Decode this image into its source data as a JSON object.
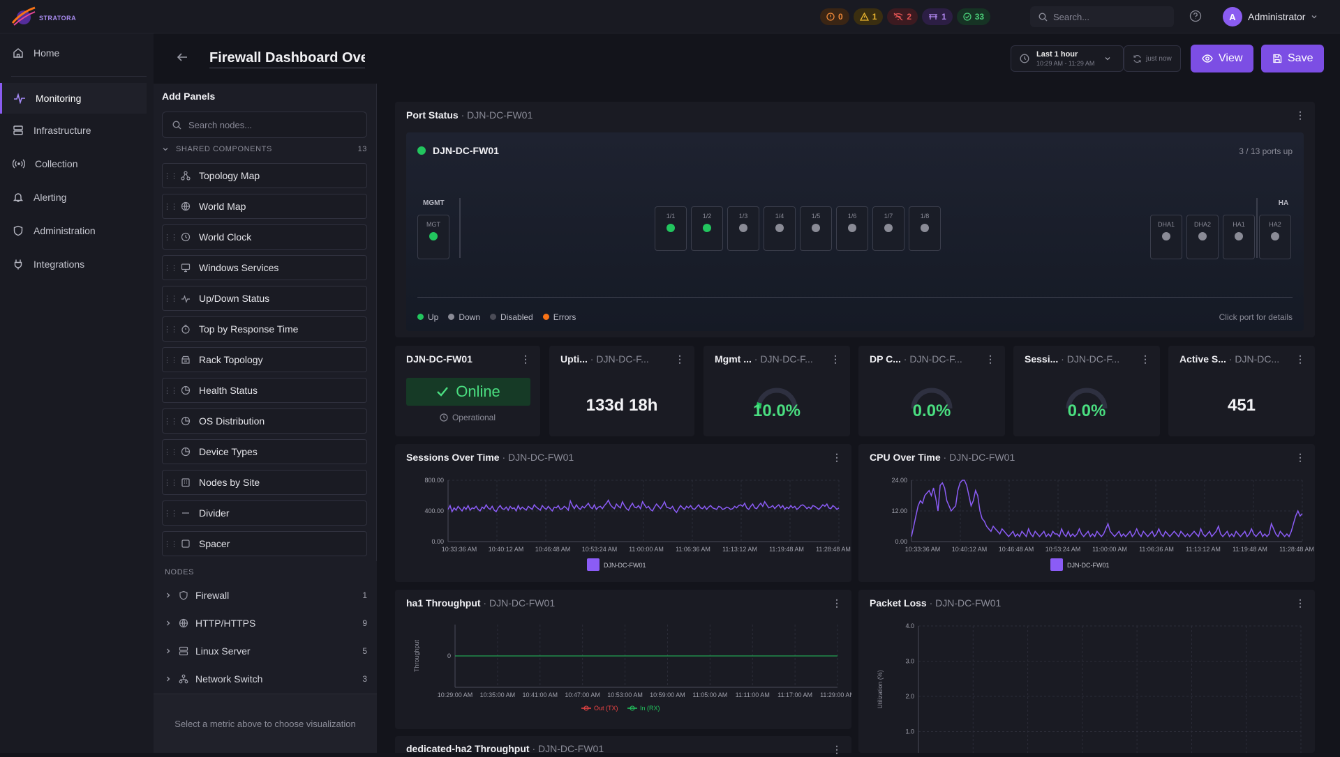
{
  "app": {
    "logo_text": "STRATORA"
  },
  "topbar": {
    "alerts": [
      {
        "count": "0",
        "icon": "error-circle-icon",
        "color": "#f08a3a"
      },
      {
        "count": "1",
        "icon": "warning-triangle-icon",
        "color": "#eab52f"
      },
      {
        "count": "2",
        "icon": "down-icon",
        "color": "#e85656"
      },
      {
        "count": "1",
        "icon": "maintenance-icon",
        "color": "#b58af5"
      },
      {
        "count": "33",
        "icon": "check-circle-icon",
        "color": "#4bd07a"
      }
    ],
    "search_placeholder": "Search...",
    "user": {
      "initial": "A",
      "name": "Administrator"
    }
  },
  "nav": {
    "home": "Home",
    "monitoring": "Monitoring",
    "infrastructure": "Infrastructure",
    "collection": "Collection",
    "alerting": "Alerting",
    "administration": "Administration",
    "integrations": "Integrations"
  },
  "header": {
    "title": "Firewall Dashboard Overview",
    "time_range": "Last 1 hour",
    "time_sub": "10:29 AM - 11:29 AM",
    "refresh": "just now",
    "view_label": "View",
    "save_label": "Save"
  },
  "panelbar": {
    "title": "Add Panels",
    "search_placeholder": "Search nodes...",
    "shared_label": "SHARED COMPONENTS",
    "shared_count": "13",
    "components": [
      {
        "label": "Topology Map",
        "icon": "topology-icon"
      },
      {
        "label": "World Map",
        "icon": "globe-icon"
      },
      {
        "label": "World Clock",
        "icon": "clock-icon"
      },
      {
        "label": "Windows Services",
        "icon": "monitor-icon"
      },
      {
        "label": "Up/Down Status",
        "icon": "pulse-icon"
      },
      {
        "label": "Top by Response Time",
        "icon": "timer-icon"
      },
      {
        "label": "Rack Topology",
        "icon": "rack-icon"
      },
      {
        "label": "Health Status",
        "icon": "pie-icon"
      },
      {
        "label": "OS Distribution",
        "icon": "pie-icon"
      },
      {
        "label": "Device Types",
        "icon": "pie-icon"
      },
      {
        "label": "Nodes by Site",
        "icon": "building-icon"
      },
      {
        "label": "Divider",
        "icon": "divider-icon"
      },
      {
        "label": "Spacer",
        "icon": "square-icon"
      }
    ],
    "nodes_label": "NODES",
    "nodes": [
      {
        "label": "Firewall",
        "count": "1",
        "icon": "shield-icon"
      },
      {
        "label": "HTTP/HTTPS",
        "count": "9",
        "icon": "globe-icon"
      },
      {
        "label": "Linux Server",
        "count": "5",
        "icon": "server-icon"
      },
      {
        "label": "Network Switch",
        "count": "3",
        "icon": "switch-icon"
      }
    ],
    "footer": "Select a metric above to choose visualization"
  },
  "port_status": {
    "title": "Port Status",
    "source": "DJN-DC-FW01",
    "device": "DJN-DC-FW01",
    "summary": "3 / 13 ports up",
    "mgmt_group": "MGMT",
    "ha_group": "HA",
    "mgmt_ports": [
      {
        "label": "MGT",
        "status": "up"
      }
    ],
    "data_ports": [
      {
        "label": "1/1",
        "status": "up"
      },
      {
        "label": "1/2",
        "status": "up"
      },
      {
        "label": "1/3",
        "status": "down"
      },
      {
        "label": "1/4",
        "status": "down"
      },
      {
        "label": "1/5",
        "status": "down"
      },
      {
        "label": "1/6",
        "status": "down"
      },
      {
        "label": "1/7",
        "status": "down"
      },
      {
        "label": "1/8",
        "status": "down"
      }
    ],
    "ha_ports": [
      {
        "label": "DHA1",
        "status": "down"
      },
      {
        "label": "DHA2",
        "status": "down"
      },
      {
        "label": "HA1",
        "status": "down"
      },
      {
        "label": "HA2",
        "status": "down"
      }
    ],
    "legend": [
      {
        "label": "Up",
        "color": "#22c55e"
      },
      {
        "label": "Down",
        "color": "#8a8b96"
      },
      {
        "label": "Disabled",
        "color": "#4b4c57"
      },
      {
        "label": "Errors",
        "color": "#f97316"
      }
    ],
    "hint": "Click port for details"
  },
  "stats": {
    "status": {
      "title": "DJN-DC-FW01",
      "value": "Online",
      "sub": "Operational"
    },
    "uptime": {
      "title": "Upti...",
      "source": "DJN-DC-F...",
      "value": "133d 18h"
    },
    "mgmt": {
      "title": "Mgmt ...",
      "source": "DJN-DC-F...",
      "value": "10.0%",
      "fraction": 0.1
    },
    "dp": {
      "title": "DP C...",
      "source": "DJN-DC-F...",
      "value": "0.0%",
      "fraction": 0.0
    },
    "sessions": {
      "title": "Sessi...",
      "source": "DJN-DC-F...",
      "value": "0.0%",
      "fraction": 0.0
    },
    "active": {
      "title": "Active S...",
      "source": "DJN-DC...",
      "value": "451"
    }
  },
  "chart_data": [
    {
      "type": "line",
      "title": "Sessions Over Time",
      "source": "DJN-DC-FW01",
      "yticks": [
        "800.00",
        "400.00",
        "0.00"
      ],
      "ylim": [
        0,
        800
      ],
      "xticks": [
        "10:33:36 AM",
        "10:40:12 AM",
        "10:46:48 AM",
        "10:53:24 AM",
        "11:00:00 AM",
        "11:06:36 AM",
        "11:13:12 AM",
        "11:19:48 AM",
        "11:28:48 AM"
      ],
      "series": [
        {
          "name": "DJN-DC-FW01",
          "color": "#8b5cf6",
          "values": [
            420,
            470,
            390,
            440,
            410,
            460,
            430,
            400,
            450,
            420,
            470,
            410,
            440,
            430,
            460,
            420,
            400,
            450,
            430,
            480,
            440,
            420,
            460,
            410,
            390,
            440,
            470,
            430,
            420,
            450,
            410,
            460,
            430,
            440,
            400,
            470,
            420,
            450,
            430,
            410,
            460,
            440,
            420,
            480,
            450,
            430,
            410,
            470,
            440,
            420,
            460,
            430,
            400,
            450,
            440,
            470,
            420,
            430,
            460,
            440,
            410,
            530,
            470,
            430,
            480,
            440,
            420,
            460,
            440,
            470,
            500,
            450,
            430,
            480,
            420,
            450,
            460,
            430,
            470,
            500,
            540,
            480,
            450,
            430,
            490,
            460,
            440,
            520,
            470,
            430,
            410,
            460,
            500,
            450,
            440,
            470,
            430,
            520,
            480,
            440,
            460,
            420,
            400,
            450,
            490,
            460,
            430,
            470,
            520,
            450,
            440,
            430,
            460,
            410,
            380,
            430,
            470,
            440,
            420,
            460,
            440,
            470,
            430,
            420,
            450,
            480,
            440,
            430,
            460,
            420,
            450,
            470,
            440,
            430,
            420,
            460,
            450,
            420,
            430,
            450,
            440,
            420,
            430,
            460,
            440,
            470,
            480,
            460,
            500,
            440,
            420,
            460,
            490,
            440,
            430,
            470,
            500,
            460,
            520,
            480,
            440,
            450,
            470,
            430,
            460,
            480,
            440,
            470,
            420,
            450,
            430,
            470,
            440,
            460,
            420,
            440,
            470,
            480,
            460,
            430,
            450,
            430,
            470,
            460,
            440,
            420,
            450,
            480,
            460,
            490,
            440,
            430,
            470,
            450,
            420,
            440
          ]
        }
      ]
    },
    {
      "type": "line",
      "title": "CPU Over Time",
      "source": "DJN-DC-FW01",
      "yticks": [
        "24.00",
        "12.00",
        "0.00"
      ],
      "ylim": [
        0,
        24
      ],
      "xticks": [
        "10:33:36 AM",
        "10:40:12 AM",
        "10:46:48 AM",
        "10:53:24 AM",
        "11:00:00 AM",
        "11:06:36 AM",
        "11:13:12 AM",
        "11:19:48 AM",
        "11:28:48 AM"
      ],
      "series": [
        {
          "name": "DJN-DC-FW01",
          "color": "#8b5cf6",
          "values": [
            2,
            6,
            10,
            14,
            16,
            15,
            18,
            19,
            20,
            18,
            21,
            17,
            12,
            22,
            23,
            21,
            16,
            14,
            12,
            13,
            14,
            20,
            23,
            24,
            24,
            22,
            18,
            14,
            16,
            20,
            18,
            12,
            9,
            8,
            6,
            5,
            4,
            6,
            5,
            4,
            3,
            5,
            4,
            3,
            2,
            3,
            4,
            2,
            3,
            2,
            4,
            3,
            2,
            5,
            3,
            2,
            4,
            3,
            2,
            3,
            4,
            2,
            3,
            2,
            4,
            3,
            3,
            2,
            5,
            3,
            2,
            4,
            2,
            3,
            2,
            3,
            5,
            3,
            2,
            3,
            4,
            2,
            3,
            2,
            4,
            3,
            2,
            3,
            5,
            7,
            4,
            3,
            2,
            3,
            4,
            2,
            3,
            2,
            3,
            4,
            2,
            3,
            5,
            3,
            2,
            4,
            3,
            2,
            3,
            4,
            2,
            3,
            5,
            3,
            2,
            4,
            3,
            2,
            3,
            4,
            3,
            2,
            4,
            3,
            2,
            3,
            2,
            3,
            4,
            3,
            2,
            5,
            3,
            2,
            3,
            4,
            2,
            3,
            4,
            6,
            3,
            2,
            3,
            4,
            2,
            3,
            2,
            4,
            3,
            2,
            3,
            4,
            2,
            3,
            5,
            3,
            2,
            3,
            4,
            2,
            3,
            2,
            3,
            7,
            5,
            3,
            2,
            4,
            3,
            2,
            3,
            2,
            4,
            7,
            10,
            12,
            10,
            11
          ]
        }
      ]
    },
    {
      "type": "line",
      "title": "ha1 Throughput",
      "source": "DJN-DC-FW01",
      "ylabel": "Throughput",
      "yticks": [
        "0"
      ],
      "ylim": [
        -1,
        1
      ],
      "xticks": [
        "10:29:00 AM",
        "10:35:00 AM",
        "10:41:00 AM",
        "10:47:00 AM",
        "10:53:00 AM",
        "10:59:00 AM",
        "11:05:00 AM",
        "11:11:00 AM",
        "11:17:00 AM",
        "11:29:00 AM"
      ],
      "series": [
        {
          "name": "Out (TX)",
          "color": "#ef4444",
          "values": [
            0,
            0,
            0,
            0,
            0,
            0,
            0,
            0,
            0,
            0
          ]
        },
        {
          "name": "In (RX)",
          "color": "#22c55e",
          "values": [
            0,
            0,
            0,
            0,
            0,
            0,
            0,
            0,
            0,
            0
          ]
        }
      ]
    },
    {
      "type": "line",
      "title": "Packet Loss",
      "source": "DJN-DC-FW01",
      "ylabel": "Utilization (%)",
      "yticks": [
        "4.0",
        "3.0",
        "2.0",
        "1.0"
      ],
      "ylim": [
        0,
        4
      ],
      "series": []
    }
  ],
  "partial_panel": {
    "title": "dedicated-ha2 Throughput",
    "source": "DJN-DC-FW01"
  }
}
